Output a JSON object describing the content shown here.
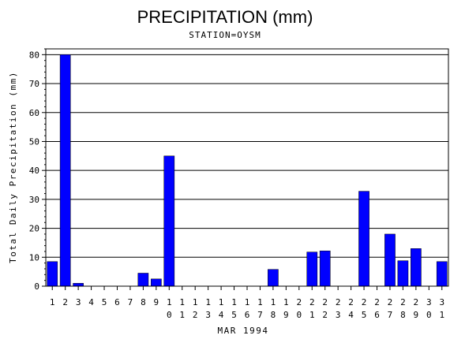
{
  "chart_data": {
    "type": "bar",
    "title": "PRECIPITATION (mm)",
    "subtitle": "STATION=OYSM",
    "xlabel": "MAR 1994",
    "ylabel": "Total Daily Precipitation (mm)",
    "ylim": [
      0,
      82
    ],
    "yticks": [
      0,
      10,
      20,
      30,
      40,
      50,
      60,
      70,
      80
    ],
    "grid": true,
    "bar_color": "#0000ff",
    "categories": [
      "1",
      "2",
      "3",
      "4",
      "5",
      "6",
      "7",
      "8",
      "9",
      "10",
      "11",
      "12",
      "13",
      "14",
      "15",
      "16",
      "17",
      "18",
      "19",
      "20",
      "21",
      "22",
      "23",
      "24",
      "25",
      "26",
      "27",
      "28",
      "29",
      "30",
      "31"
    ],
    "values": [
      8.5,
      80,
      1,
      0,
      0,
      0,
      0,
      4.5,
      2.5,
      45,
      0,
      0,
      0,
      0,
      0,
      0,
      0,
      5.8,
      0,
      0,
      11.8,
      12.2,
      0,
      0,
      32.8,
      0,
      18,
      8.8,
      13,
      0,
      8.5
    ]
  }
}
